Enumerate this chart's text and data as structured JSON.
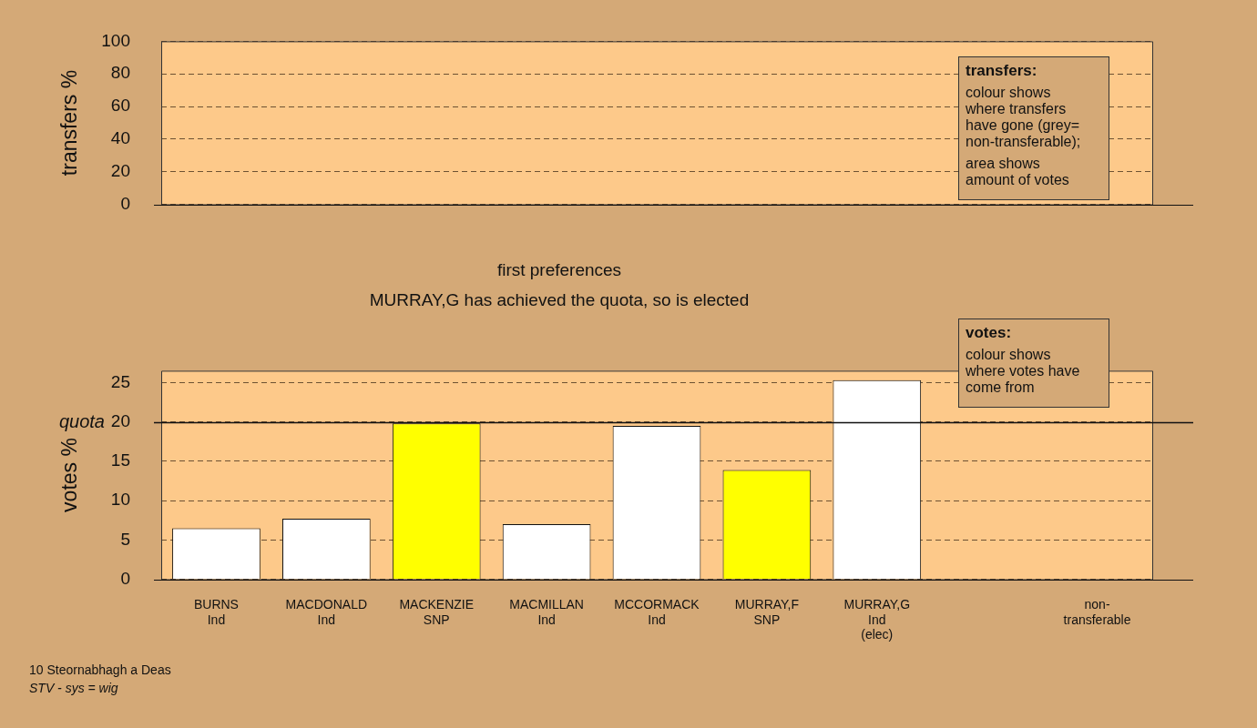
{
  "chart_data": [
    {
      "type": "bar",
      "ylabel": "transfers %",
      "categories": [
        null,
        null,
        null,
        null,
        null,
        null,
        null,
        null,
        null
      ],
      "values": [
        null,
        null,
        null,
        null,
        null,
        null,
        null,
        null,
        null
      ],
      "ylim": [
        0,
        100
      ],
      "yticks": [
        0,
        20,
        40,
        60,
        80,
        100
      ],
      "grid": "y",
      "legend": false,
      "tick_labels": "y",
      "annotations": [
        "transfers:",
        "colour shows where transfers have gone (grey= non-transferable);",
        "area shows amount of votes"
      ]
    },
    {
      "type": "bar",
      "title": "first preferences",
      "subtitle": "MURRAY,G has achieved the quota, so is elected",
      "ylabel": "votes %",
      "categories": [
        "BURNS\nInd",
        "MACDONALD\nInd",
        "MACKENZIE\nSNP",
        "MACMILLAN\nInd",
        "MCCORMACK\nInd",
        "MURRAY,F\nSNP",
        "MURRAY,G\nInd\n(elec)",
        null,
        "non-\ntransferable"
      ],
      "values": [
        6.5,
        7.7,
        19.8,
        7.0,
        19.5,
        13.9,
        25.3,
        null,
        null
      ],
      "colors": [
        "#ffffff",
        "#ffffff",
        "#ffff00",
        "#ffffff",
        "#ffffff",
        "#ffff00",
        "#ffffff",
        "#ffffff",
        "#ffffff"
      ],
      "ylim": [
        0,
        26.5
      ],
      "yticks": [
        0,
        5,
        10,
        15,
        20,
        25
      ],
      "grid": "y",
      "legend": false,
      "ref_lines": [
        {
          "axis": "y",
          "value": 20,
          "label": "quota"
        }
      ],
      "annotations": [
        "votes:",
        "colour shows where votes have come from",
        "10 Steornabhagh a Deas",
        "STV - sys = wig"
      ]
    }
  ]
}
